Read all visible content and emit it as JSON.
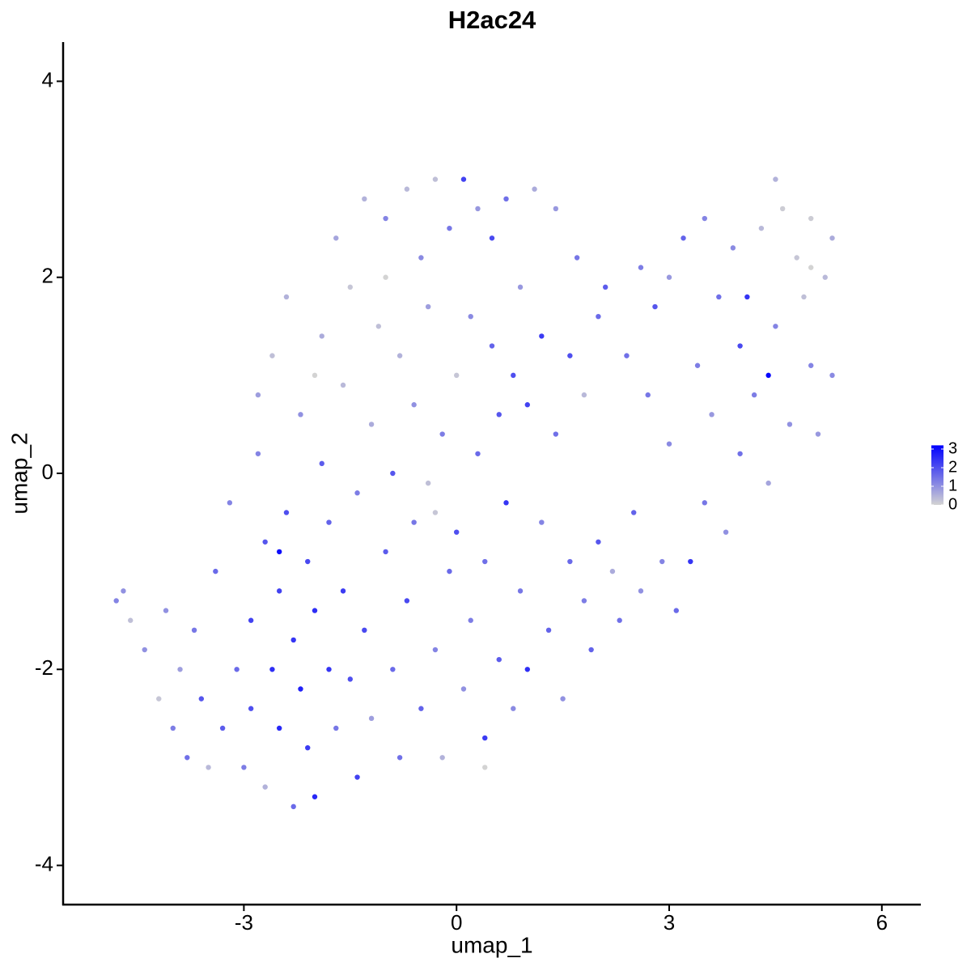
{
  "chart_data": {
    "type": "scatter",
    "title": "H2ac24",
    "x_label": "umap_1",
    "y_label": "umap_2",
    "xlim": [
      -5.55,
      6.55
    ],
    "ylim": [
      -4.4,
      4.4
    ],
    "xticks": [
      -3,
      0,
      3,
      6
    ],
    "yticks": [
      -4,
      -2,
      0,
      2,
      4
    ],
    "color_scale": {
      "low": "#d3d3d3",
      "high": "#0000ff",
      "lim": [
        0,
        3.2
      ],
      "ticks": [
        0,
        1,
        2,
        3
      ]
    },
    "x": [
      -4.8,
      -4.7,
      -4.6,
      -4.4,
      -4.2,
      -4.1,
      -4.0,
      -3.9,
      -3.8,
      -3.7,
      -3.6,
      -3.5,
      -3.4,
      -3.3,
      -3.2,
      -3.1,
      -3.0,
      -2.9,
      -2.9,
      -2.8,
      -2.8,
      -2.7,
      -2.7,
      -2.6,
      -2.6,
      -2.5,
      -2.5,
      -2.4,
      -2.4,
      -2.3,
      -2.3,
      -2.2,
      -2.2,
      -2.1,
      -2.1,
      -2.0,
      -2.0,
      -1.9,
      -1.9,
      -1.8,
      -1.8,
      -1.7,
      -1.7,
      -1.6,
      -1.6,
      -1.5,
      -1.5,
      -1.4,
      -1.4,
      -1.3,
      -1.3,
      -1.2,
      -1.2,
      -1.1,
      -1.0,
      -1.0,
      -0.9,
      -0.9,
      -0.8,
      -0.8,
      -0.7,
      -0.7,
      -0.6,
      -0.6,
      -0.5,
      -0.5,
      -0.4,
      -0.4,
      -0.3,
      -0.3,
      -0.2,
      -0.2,
      -0.1,
      -0.1,
      0.0,
      0.0,
      0.1,
      0.1,
      0.2,
      0.2,
      0.3,
      0.3,
      0.4,
      0.4,
      0.5,
      0.5,
      0.6,
      0.6,
      0.7,
      0.7,
      0.8,
      0.8,
      0.9,
      0.9,
      1.0,
      1.0,
      1.1,
      1.2,
      1.2,
      1.3,
      1.4,
      1.4,
      1.5,
      1.6,
      1.6,
      1.7,
      1.8,
      1.8,
      1.9,
      2.0,
      2.0,
      2.1,
      2.2,
      2.3,
      2.4,
      2.5,
      2.6,
      2.6,
      2.7,
      2.8,
      2.9,
      3.0,
      3.0,
      3.1,
      3.2,
      3.3,
      3.4,
      3.5,
      3.5,
      3.6,
      3.7,
      3.8,
      3.9,
      4.0,
      4.0,
      4.1,
      4.2,
      4.3,
      4.4,
      4.4,
      4.5,
      4.5,
      4.6,
      4.7,
      4.8,
      4.9,
      5.0,
      5.0,
      5.1,
      5.2,
      5.3,
      5.3,
      -2.5,
      -0.3,
      -1.0,
      -2.0,
      0.4,
      5.0
    ],
    "y": [
      -1.3,
      -1.2,
      -1.5,
      -1.8,
      -2.3,
      -1.4,
      -2.6,
      -2.0,
      -2.9,
      -1.6,
      -2.3,
      -3.0,
      -1.0,
      -2.6,
      -0.3,
      -2.0,
      -3.0,
      -1.5,
      -2.4,
      0.2,
      0.8,
      -0.7,
      -3.2,
      -2.0,
      1.2,
      -1.2,
      -2.6,
      -0.4,
      1.8,
      -1.7,
      -3.4,
      -2.2,
      0.6,
      -0.9,
      -2.8,
      -3.3,
      -1.4,
      1.4,
      0.1,
      -2.0,
      -0.5,
      2.4,
      -2.6,
      -1.2,
      0.9,
      1.9,
      -2.1,
      -3.1,
      -0.2,
      2.8,
      -1.6,
      0.5,
      -2.5,
      1.5,
      -0.8,
      2.6,
      -2.0,
      0.0,
      1.2,
      -2.9,
      2.9,
      -1.3,
      0.7,
      -0.5,
      2.2,
      -2.4,
      -0.1,
      1.7,
      -1.8,
      3.0,
      0.4,
      -2.9,
      -1.0,
      2.5,
      1.0,
      -0.6,
      -2.2,
      3.0,
      1.6,
      -1.5,
      0.2,
      2.7,
      -2.7,
      -0.9,
      1.3,
      2.4,
      -1.9,
      0.6,
      -0.3,
      2.8,
      1.0,
      -2.4,
      -1.2,
      1.9,
      0.7,
      -2.0,
      2.9,
      1.4,
      -0.5,
      -1.6,
      0.4,
      2.7,
      -2.3,
      1.2,
      -0.9,
      2.2,
      -1.3,
      0.8,
      -1.8,
      1.6,
      -0.7,
      1.9,
      -1.0,
      -1.5,
      1.2,
      -0.4,
      2.1,
      -1.2,
      0.8,
      1.7,
      -0.9,
      2.0,
      0.3,
      -1.4,
      2.4,
      -0.9,
      1.1,
      2.6,
      -0.3,
      0.6,
      1.8,
      -0.6,
      2.3,
      1.3,
      0.2,
      1.8,
      0.8,
      2.5,
      1.0,
      -0.1,
      3.0,
      1.5,
      2.7,
      0.5,
      2.2,
      1.8,
      1.1,
      2.6,
      0.4,
      2.0,
      2.4,
      1.0,
      -0.8,
      -0.4,
      2.0,
      1.0,
      -3.0,
      2.1
    ],
    "expression": [
      1.2,
      1.0,
      0.3,
      1.0,
      0.2,
      1.0,
      1.3,
      0.8,
      1.5,
      1.4,
      1.9,
      0.4,
      1.6,
      1.8,
      1.2,
      1.6,
      1.3,
      2.2,
      2.0,
      1.2,
      0.8,
      1.9,
      0.5,
      2.5,
      0.3,
      2.2,
      2.6,
      2.0,
      0.5,
      2.4,
      1.6,
      2.7,
      1.0,
      2.1,
      2.3,
      2.6,
      2.5,
      0.6,
      1.8,
      2.4,
      1.7,
      0.7,
      1.4,
      2.3,
      0.4,
      0.2,
      2.0,
      2.2,
      1.3,
      0.5,
      2.1,
      0.6,
      0.8,
      0.3,
      1.8,
      1.2,
      1.6,
      1.9,
      0.5,
      1.5,
      0.4,
      2.1,
      1.0,
      1.4,
      1.1,
      1.7,
      0.3,
      0.8,
      1.2,
      0.3,
      1.3,
      0.5,
      1.6,
      1.4,
      0.2,
      2.0,
      1.0,
      2.2,
      1.1,
      1.3,
      1.6,
      0.9,
      2.3,
      1.5,
      1.7,
      2.1,
      1.8,
      1.9,
      2.4,
      1.5,
      2.0,
      1.1,
      1.4,
      0.9,
      2.2,
      2.5,
      0.6,
      2.3,
      1.2,
      1.7,
      1.5,
      0.9,
      1.0,
      2.0,
      1.6,
      1.4,
      1.3,
      0.4,
      1.7,
      1.6,
      1.9,
      1.8,
      0.6,
      1.5,
      1.5,
      1.7,
      1.3,
      1.0,
      1.4,
      1.9,
      1.2,
      0.9,
      1.1,
      1.6,
      1.7,
      2.4,
      1.3,
      1.2,
      1.4,
      0.9,
      1.5,
      1.0,
      1.1,
      2.1,
      1.5,
      2.4,
      1.3,
      0.4,
      3.1,
      0.7,
      0.5,
      1.2,
      0.1,
      1.0,
      0.2,
      0.3,
      1.2,
      0.1,
      0.9,
      0.4,
      0.6,
      1.1,
      3.0,
      0.2,
      0.0,
      0.0,
      0.0,
      0.0
    ]
  }
}
